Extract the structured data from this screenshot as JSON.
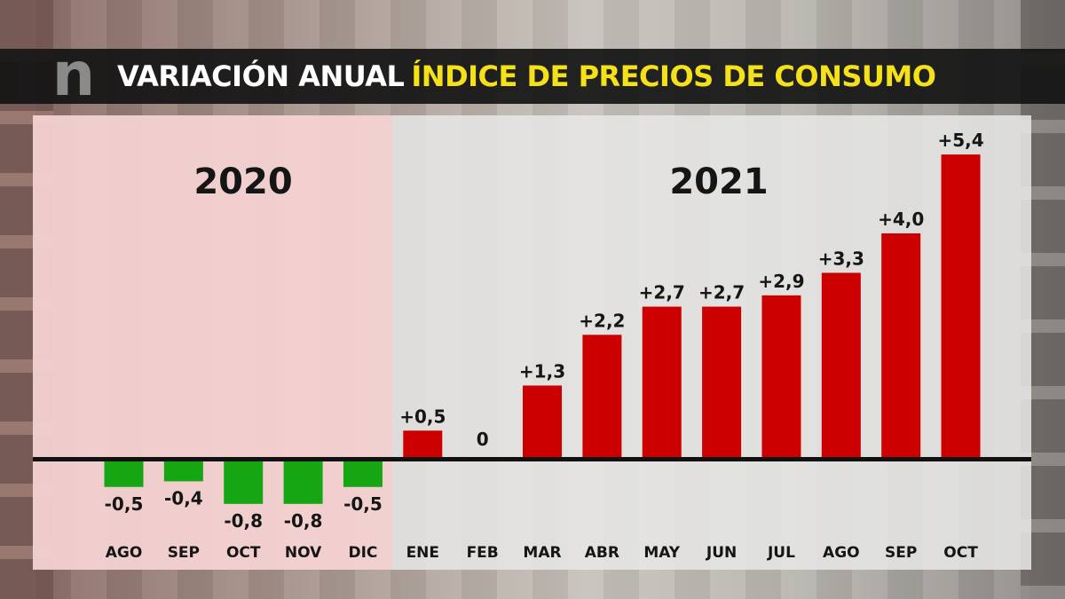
{
  "header": {
    "logo_text": "n",
    "title_part1": "VARIACIÓN ANUAL",
    "title_part2": "ÍNDICE DE PRECIOS DE CONSUMO"
  },
  "colors": {
    "positive": "#cc0000",
    "negative": "#16a513",
    "title_accent": "#f5e11a"
  },
  "chart_data": {
    "type": "bar",
    "title": "VARIACIÓN ANUAL ÍNDICE DE PRECIOS DE CONSUMO",
    "xlabel": "",
    "ylabel": "",
    "ylim": [
      -1.2,
      5.8
    ],
    "year_groups": [
      {
        "label": "2020",
        "months": [
          "AGO",
          "SEP",
          "OCT",
          "NOV",
          "DIC"
        ]
      },
      {
        "label": "2021",
        "months": [
          "ENE",
          "FEB",
          "MAR",
          "ABR",
          "MAY",
          "JUN",
          "JUL",
          "AGO",
          "SEP",
          "OCT"
        ]
      }
    ],
    "categories": [
      "AGO",
      "SEP",
      "OCT",
      "NOV",
      "DIC",
      "ENE",
      "FEB",
      "MAR",
      "ABR",
      "MAY",
      "JUN",
      "JUL",
      "AGO",
      "SEP",
      "OCT"
    ],
    "values": [
      -0.5,
      -0.4,
      -0.8,
      -0.8,
      -0.5,
      0.5,
      0,
      1.3,
      2.2,
      2.7,
      2.7,
      2.9,
      3.3,
      4.0,
      5.4
    ],
    "data_labels": [
      "-0,5",
      "-0,4",
      "-0,8",
      "-0,8",
      "-0,5",
      "+0,5",
      "0",
      "+1,3",
      "+2,2",
      "+2,7",
      "+2,7",
      "+2,9",
      "+3,3",
      "+4,0",
      "+5,4"
    ]
  }
}
